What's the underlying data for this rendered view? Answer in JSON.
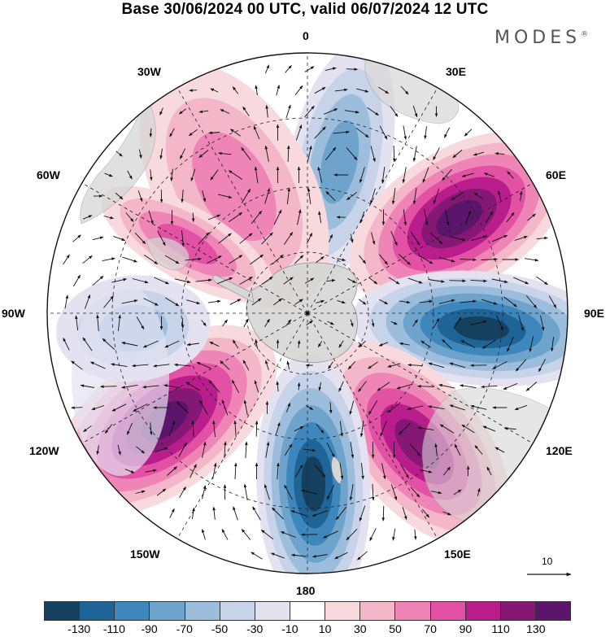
{
  "title": "Base 30/06/2024 00 UTC, valid 06/07/2024 12 UTC",
  "brand": {
    "name": "MODES",
    "mark": "®"
  },
  "longitude_labels": {
    "n0": "0",
    "n30e": "30E",
    "n60e": "60E",
    "n90e": "90E",
    "n120e": "120E",
    "n150e": "150E",
    "n180": "180",
    "n150w": "150W",
    "n120w": "120W",
    "n90w": "90W",
    "n60w": "60W",
    "n30w": "30W"
  },
  "reference_vector": {
    "label": "10"
  },
  "colorbar": {
    "tick_labels": [
      "-130",
      "-110",
      "-90",
      "-70",
      "-50",
      "-30",
      "-10",
      "10",
      "30",
      "50",
      "70",
      "90",
      "110",
      "130"
    ],
    "colors": [
      "#16405f",
      "#1f6497",
      "#3d87bd",
      "#6ea3cc",
      "#9cbddc",
      "#c6d3e9",
      "#e4e2f1",
      "#ffffff",
      "#f8d9dd",
      "#f4b6c9",
      "#ee85b6",
      "#e251a4",
      "#b91d8c",
      "#861875",
      "#5b156b"
    ]
  },
  "map": {
    "projection": "south polar stereographic",
    "land_color": "#d6d6d6",
    "anomaly_centers": [
      {
        "lon_deg": 10,
        "sign": "negative",
        "level": "-70"
      },
      {
        "lon_deg": 58,
        "sign": "positive",
        "level": "130"
      },
      {
        "lon_deg": 95,
        "sign": "negative",
        "level": "-110"
      },
      {
        "lon_deg": 140,
        "sign": "positive",
        "level": "110"
      },
      {
        "lon_deg": 180,
        "sign": "negative",
        "level": "-130"
      },
      {
        "lon_deg": 233,
        "sign": "positive",
        "level": "130"
      },
      {
        "lon_deg": 265,
        "sign": "negative",
        "level": "-70"
      },
      {
        "lon_deg": 330,
        "sign": "positive",
        "level": "50"
      }
    ]
  }
}
